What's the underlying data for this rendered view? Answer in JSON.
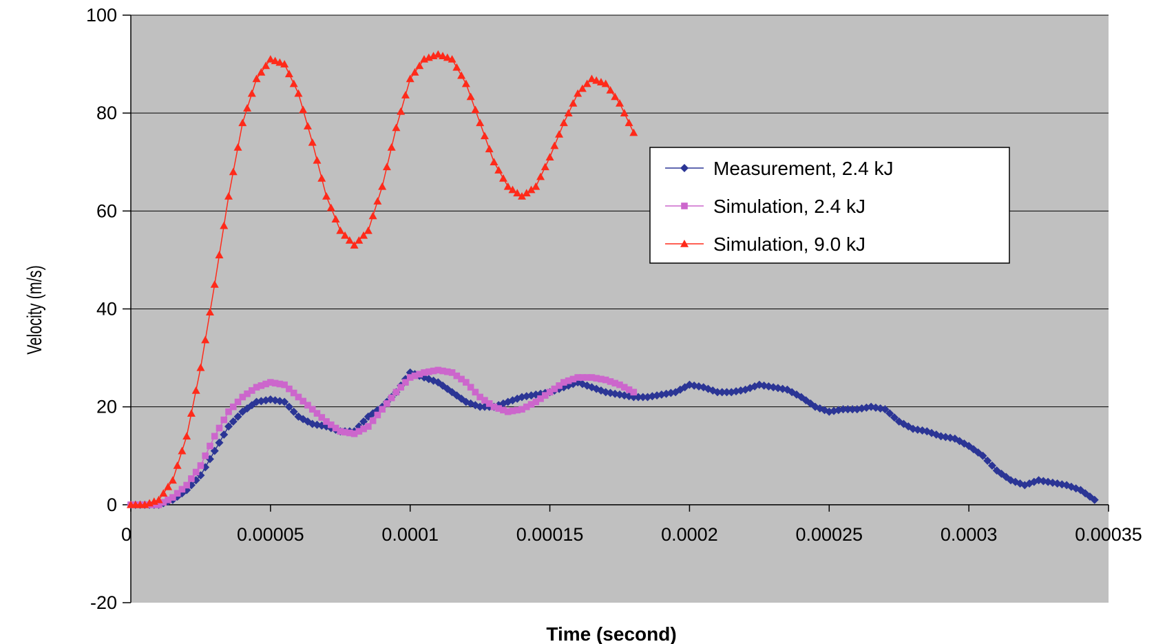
{
  "chart_data": {
    "type": "line",
    "title": "",
    "xlabel": "Time (second)",
    "ylabel": "Velocity (m/s)",
    "xlim": [
      0,
      0.00035
    ],
    "ylim": [
      -20,
      100
    ],
    "x_ticks": [
      0,
      5e-05,
      0.0001,
      0.00015,
      0.0002,
      0.00025,
      0.0003,
      0.00035
    ],
    "x_tick_labels": [
      "0",
      "0.00005",
      "0.0001",
      "0.00015",
      "0.0002",
      "0.00025",
      "0.0003",
      "0.00035"
    ],
    "y_ticks": [
      -20,
      0,
      20,
      40,
      60,
      80,
      100
    ],
    "y_tick_labels": [
      "-20",
      "0",
      "20",
      "40",
      "60",
      "80",
      "100"
    ],
    "grid": "horizontal",
    "legend_position": "upper-right",
    "series": [
      {
        "name": "Measurement, 2.4 kJ",
        "color": "#2b3595",
        "marker": "diamond",
        "x": [
          0,
          5e-06,
          1e-05,
          1.5e-05,
          2e-05,
          2.5e-05,
          3e-05,
          3.5e-05,
          4e-05,
          4.5e-05,
          5e-05,
          5.5e-05,
          6e-05,
          6.5e-05,
          7e-05,
          7.5e-05,
          8e-05,
          8.5e-05,
          9e-05,
          9.5e-05,
          0.0001,
          0.000105,
          0.00011,
          0.000115,
          0.00012,
          0.000125,
          0.00013,
          0.000135,
          0.00014,
          0.000145,
          0.00015,
          0.000155,
          0.00016,
          0.000165,
          0.00017,
          0.000175,
          0.00018,
          0.000185,
          0.00019,
          0.000195,
          0.0002,
          0.000205,
          0.00021,
          0.000215,
          0.00022,
          0.000225,
          0.00023,
          0.000235,
          0.00024,
          0.000245,
          0.00025,
          0.000255,
          0.00026,
          0.000265,
          0.00027,
          0.000275,
          0.00028,
          0.000285,
          0.00029,
          0.000295,
          0.0003,
          0.000305,
          0.00031,
          0.000315,
          0.00032,
          0.000325,
          0.00033,
          0.000335,
          0.00034,
          0.000345
        ],
        "y": [
          0,
          0,
          0,
          1,
          3,
          6,
          11,
          16,
          19,
          21,
          21.5,
          21,
          18,
          16.5,
          16,
          15,
          15,
          18,
          20,
          23,
          27,
          26,
          25,
          23,
          21,
          20,
          20,
          21,
          22,
          22.5,
          23,
          24,
          25,
          24,
          23,
          22.5,
          22,
          22,
          22.5,
          23,
          24.5,
          24,
          23,
          23,
          23.5,
          24.5,
          24,
          23.5,
          22,
          20,
          19,
          19.5,
          19.5,
          20,
          19.5,
          17,
          15.5,
          15,
          14,
          13.5,
          12,
          10,
          7,
          5,
          4,
          5,
          4.5,
          4,
          3,
          1
        ]
      },
      {
        "name": "Simulation, 2.4 kJ",
        "color": "#cc66cc",
        "marker": "square",
        "x": [
          0,
          5e-06,
          1e-05,
          1.5e-05,
          2e-05,
          2.5e-05,
          3e-05,
          3.5e-05,
          4e-05,
          4.5e-05,
          5e-05,
          5.5e-05,
          6e-05,
          6.5e-05,
          7e-05,
          7.5e-05,
          8e-05,
          8.5e-05,
          9e-05,
          9.5e-05,
          0.0001,
          0.000105,
          0.00011,
          0.000115,
          0.00012,
          0.000125,
          0.00013,
          0.000135,
          0.00014,
          0.000145,
          0.00015,
          0.000155,
          0.00016,
          0.000165,
          0.00017,
          0.000175,
          0.00018
        ],
        "y": [
          0,
          0,
          0,
          1.5,
          4,
          8,
          14,
          19,
          22,
          24,
          25,
          24.5,
          22,
          19.5,
          17,
          15,
          14.5,
          16,
          19.5,
          23,
          26,
          27,
          27.5,
          27,
          25,
          22,
          20,
          19,
          19.5,
          21,
          23,
          25,
          26,
          26,
          25.5,
          24.5,
          23
        ]
      },
      {
        "name": "Simulation, 9.0 kJ",
        "color": "#ff2a1a",
        "marker": "triangle",
        "x": [
          0,
          5e-06,
          1e-05,
          1.5e-05,
          2e-05,
          2.5e-05,
          3e-05,
          3.5e-05,
          4e-05,
          4.5e-05,
          5e-05,
          5.5e-05,
          6e-05,
          6.5e-05,
          7e-05,
          7.5e-05,
          8e-05,
          8.5e-05,
          9e-05,
          9.5e-05,
          0.0001,
          0.000105,
          0.00011,
          0.000115,
          0.00012,
          0.000125,
          0.00013,
          0.000135,
          0.00014,
          0.000145,
          0.00015,
          0.000155,
          0.00016,
          0.000165,
          0.00017,
          0.000175,
          0.00018
        ],
        "y": [
          0,
          0,
          1,
          5,
          14,
          28,
          45,
          63,
          78,
          87,
          91,
          90,
          84,
          74,
          63,
          56,
          53,
          56,
          65,
          77,
          87,
          91,
          92,
          91,
          86,
          78,
          70,
          65,
          63,
          65,
          71,
          78,
          84,
          87,
          86,
          82,
          76
        ]
      }
    ]
  }
}
